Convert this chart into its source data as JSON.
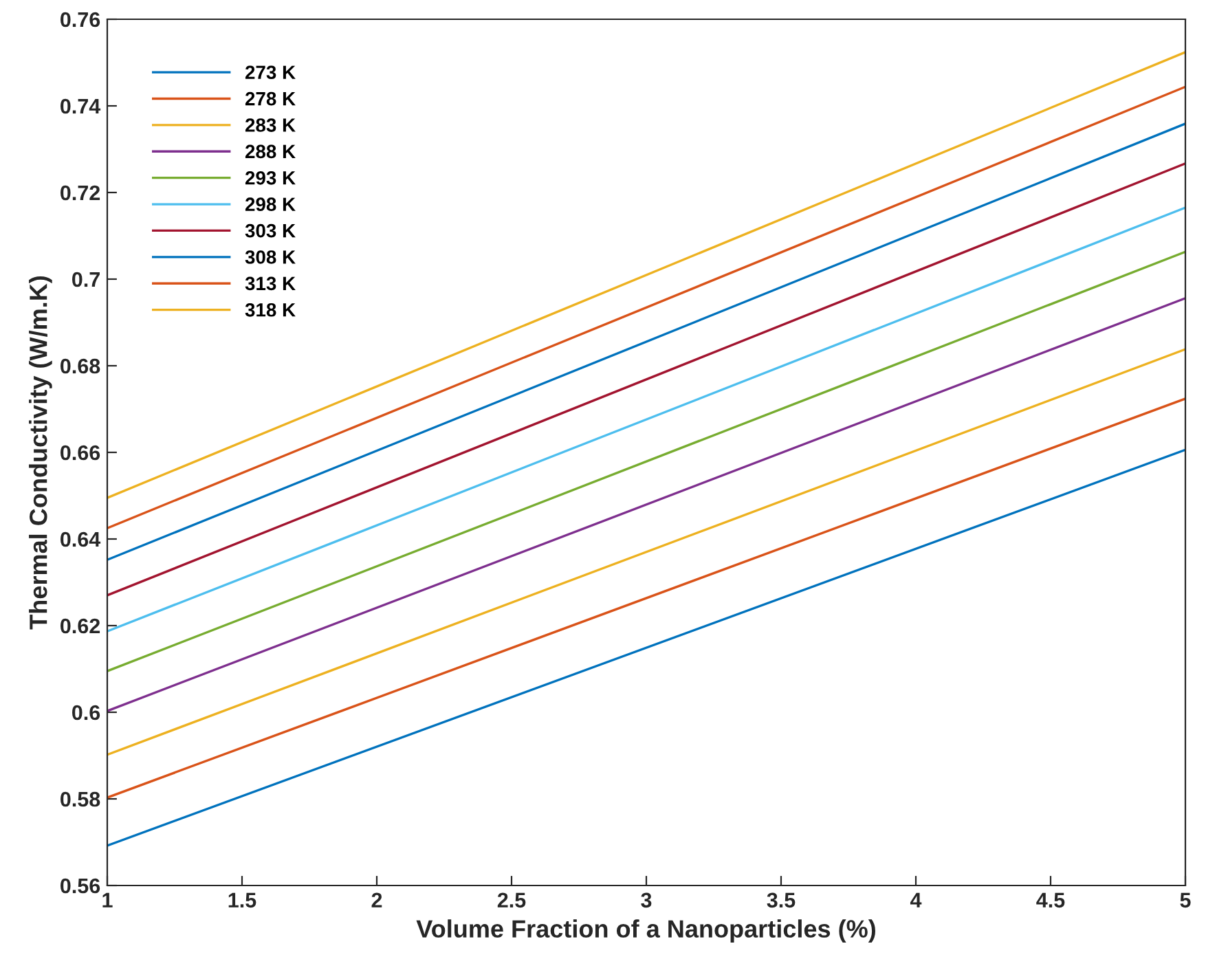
{
  "chart_data": {
    "type": "line",
    "xlabel": "Volume Fraction of a Nanoparticles (%)",
    "ylabel": "Thermal Conductivity (W/m.K)",
    "x": [
      1,
      5
    ],
    "xlim": [
      1,
      5
    ],
    "xticks": [
      1,
      1.5,
      2,
      2.5,
      3,
      3.5,
      4,
      4.5,
      5
    ],
    "ylim": [
      0.56,
      0.76
    ],
    "yticks": [
      0.56,
      0.58,
      0.6,
      0.62,
      0.64,
      0.66,
      0.68,
      0.7,
      0.72,
      0.74,
      0.76
    ],
    "grid": false,
    "legend": "top left",
    "marker": "none",
    "line_style": "solid",
    "series": [
      {
        "name": "273 K",
        "color": "#0072bd",
        "values": [
          0.5692,
          0.6606
        ]
      },
      {
        "name": "278 K",
        "color": "#d95319",
        "values": [
          0.5803,
          0.6724
        ]
      },
      {
        "name": "283 K",
        "color": "#edb120",
        "values": [
          0.5902,
          0.6838
        ]
      },
      {
        "name": "288 K",
        "color": "#7e2f8e",
        "values": [
          0.6003,
          0.6956
        ]
      },
      {
        "name": "293 K",
        "color": "#77ac30",
        "values": [
          0.6095,
          0.7063
        ]
      },
      {
        "name": "298 K",
        "color": "#4dbeee",
        "values": [
          0.6187,
          0.7165
        ]
      },
      {
        "name": "303 K",
        "color": "#a2142f",
        "values": [
          0.627,
          0.7267
        ]
      },
      {
        "name": "308 K",
        "color": "#0072bd",
        "values": [
          0.6352,
          0.7359
        ]
      },
      {
        "name": "313 K",
        "color": "#d95319",
        "values": [
          0.6425,
          0.7444
        ]
      },
      {
        "name": "318 K",
        "color": "#edb120",
        "values": [
          0.6495,
          0.7524
        ]
      }
    ]
  }
}
